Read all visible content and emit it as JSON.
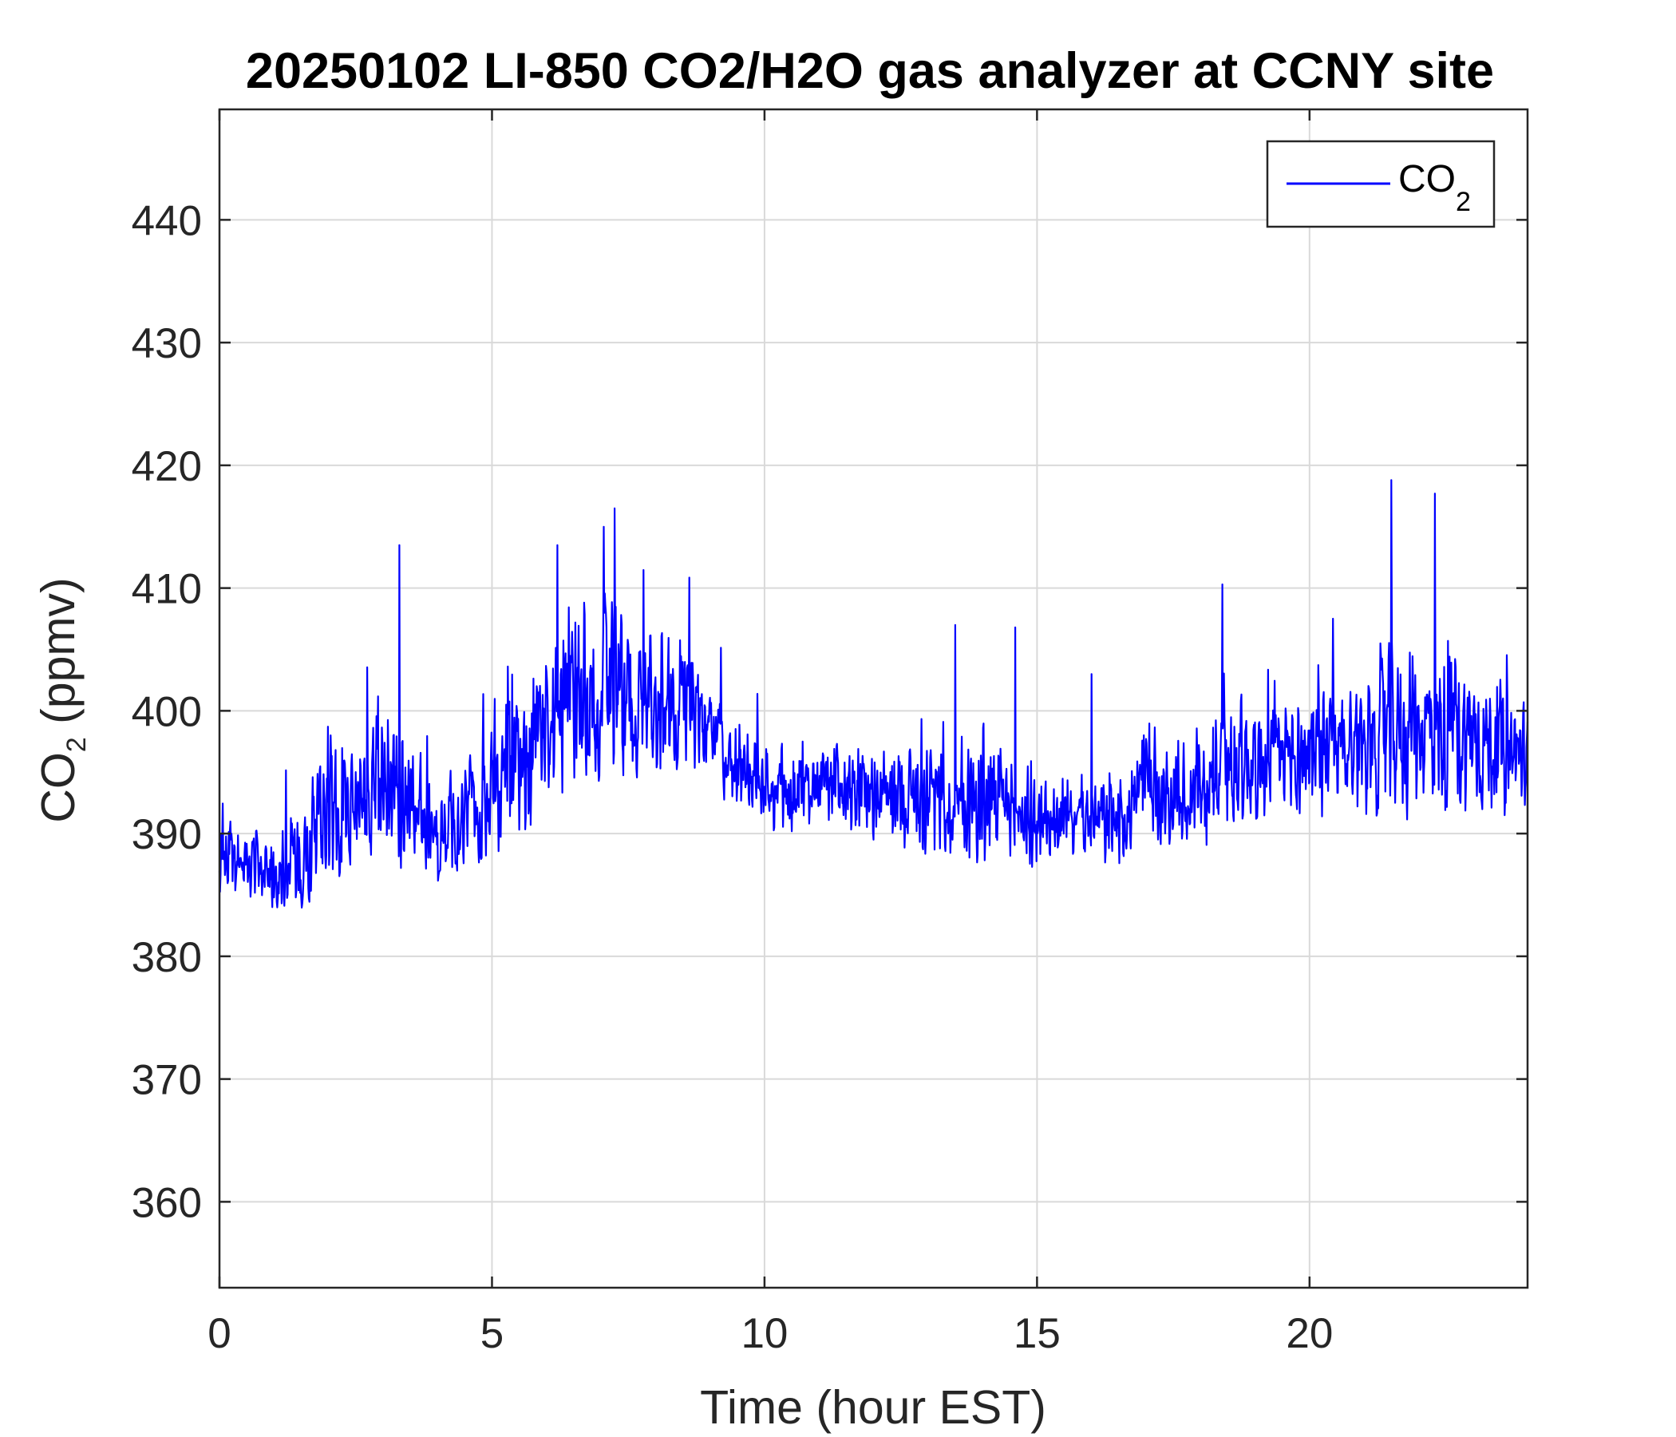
{
  "chart_data": {
    "type": "line",
    "title": "20250102 LI-850 CO2/H2O gas analyzer at CCNY site",
    "xlabel": {
      "main": "Time (hour EST)"
    },
    "ylabel": {
      "prefix": "CO",
      "subscript": "2",
      "suffix": " (ppmv)"
    },
    "xlim": [
      0,
      24
    ],
    "ylim": [
      353,
      449
    ],
    "xticks": [
      0,
      5,
      10,
      15,
      20
    ],
    "yticks": [
      360,
      370,
      380,
      390,
      400,
      410,
      420,
      430,
      440
    ],
    "grid": true,
    "legend": {
      "position": "top-right",
      "entries": [
        {
          "prefix": "CO",
          "subscript": "2",
          "color": "#0000ff"
        }
      ]
    },
    "series": [
      {
        "color": "#0000ff",
        "profile": {
          "x": [
            0,
            0.5,
            1.0,
            1.5,
            2.0,
            2.5,
            3.0,
            3.5,
            4.0,
            4.5,
            5.0,
            5.5,
            6.0,
            6.5,
            7.0,
            7.5,
            8.0,
            8.5,
            9.0,
            9.5,
            10.0,
            10.5,
            11.0,
            11.5,
            12.0,
            12.5,
            13.0,
            13.5,
            14.0,
            14.5,
            15.0,
            15.5,
            16.0,
            16.5,
            17.0,
            17.5,
            18.0,
            18.5,
            19.0,
            19.5,
            20.0,
            20.5,
            21.0,
            21.5,
            22.0,
            22.5,
            23.0,
            23.5,
            24.0
          ],
          "mean": [
            389,
            388,
            387,
            389,
            392,
            393,
            394,
            393,
            390,
            391,
            393,
            395,
            399,
            401,
            402,
            401,
            401,
            400,
            398,
            395,
            394,
            394,
            393,
            394,
            393,
            393,
            393,
            392,
            393,
            392,
            391,
            391,
            391,
            391,
            394,
            393,
            394,
            396,
            396,
            396,
            397,
            397,
            398,
            398,
            399,
            398,
            398,
            397,
            396
          ],
          "spread": [
            6,
            5,
            5,
            8,
            10,
            9,
            11,
            8,
            6,
            8,
            9,
            10,
            11,
            11,
            12,
            10,
            9,
            8,
            7,
            6,
            5,
            6,
            5,
            6,
            5,
            6,
            8,
            6,
            9,
            6,
            7,
            5,
            5,
            6,
            8,
            6,
            8,
            9,
            8,
            7,
            8,
            8,
            9,
            11,
            11,
            10,
            9,
            8,
            7
          ]
        },
        "peaks": [
          {
            "x": 3.3,
            "y": 413.5
          },
          {
            "x": 6.2,
            "y": 413.5
          },
          {
            "x": 7.25,
            "y": 416.5
          },
          {
            "x": 7.05,
            "y": 415
          },
          {
            "x": 21.5,
            "y": 418.8
          },
          {
            "x": 22.3,
            "y": 417.7
          },
          {
            "x": 18.4,
            "y": 410.3
          },
          {
            "x": 13.5,
            "y": 407
          },
          {
            "x": 14.6,
            "y": 406.8
          },
          {
            "x": 16.0,
            "y": 403
          }
        ]
      }
    ]
  }
}
